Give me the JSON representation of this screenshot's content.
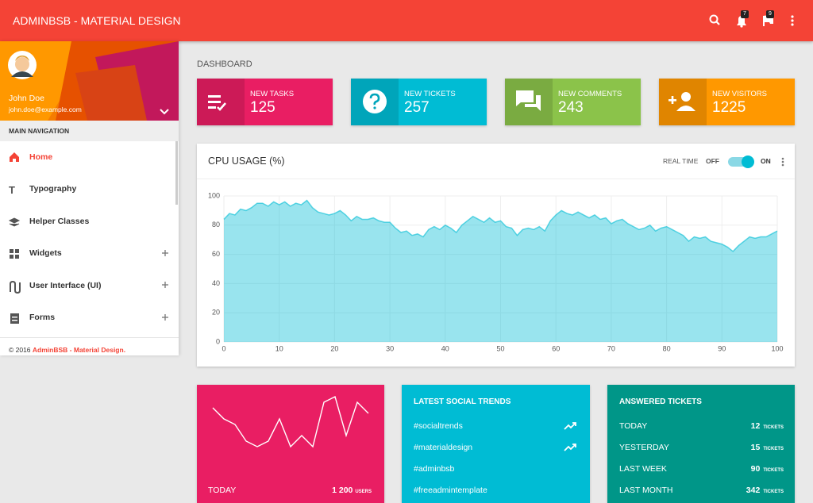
{
  "header": {
    "title": "ADMINBSB - MATERIAL DESIGN",
    "notifications": "7",
    "flags": "9"
  },
  "user": {
    "name": "John Doe",
    "email": "john.doe@example.com"
  },
  "nav": {
    "heading": "MAIN NAVIGATION",
    "items": [
      "Home",
      "Typography",
      "Helper Classes",
      "Widgets",
      "User Interface (UI)",
      "Forms"
    ]
  },
  "footer": {
    "copyright": "© 2016",
    "brand": "AdminBSB - Material Design."
  },
  "page_title": "DASHBOARD",
  "info_boxes": [
    {
      "label": "NEW TASKS",
      "value": 125
    },
    {
      "label": "NEW TICKETS",
      "value": 257
    },
    {
      "label": "NEW COMMENTS",
      "value": 243
    },
    {
      "label": "NEW VISITORS",
      "value": 1225
    }
  ],
  "cpu_card": {
    "realtime": "REAL TIME",
    "off": "OFF",
    "on": "ON"
  },
  "chart_data": [
    {
      "type": "area",
      "title": "CPU USAGE (%)",
      "color": "#00bcd4",
      "x": [
        0,
        1,
        2,
        3,
        4,
        5,
        6,
        7,
        8,
        9,
        10,
        11,
        12,
        13,
        14,
        15,
        16,
        17,
        18,
        19,
        20,
        21,
        22,
        23,
        24,
        25,
        26,
        27,
        28,
        29,
        30,
        31,
        32,
        33,
        34,
        35,
        36,
        37,
        38,
        39,
        40,
        41,
        42,
        43,
        44,
        45,
        46,
        47,
        48,
        49,
        50,
        51,
        52,
        53,
        54,
        55,
        56,
        57,
        58,
        59,
        60,
        61,
        62,
        63,
        64,
        65,
        66,
        67,
        68,
        69,
        70,
        71,
        72,
        73,
        74,
        75,
        76,
        77,
        78,
        79,
        80,
        81,
        82,
        83,
        84,
        85,
        86,
        87,
        88,
        89,
        90,
        91,
        92,
        93,
        94,
        95,
        96,
        97,
        98,
        99,
        100
      ],
      "values": [
        84,
        88,
        87,
        91,
        90,
        92,
        95,
        95,
        93,
        96,
        94,
        96,
        93,
        95,
        94,
        97,
        92,
        89,
        88,
        87,
        88,
        90,
        87,
        83,
        86,
        84,
        84,
        85,
        83,
        82,
        82,
        78,
        75,
        76,
        73,
        74,
        72,
        77,
        79,
        77,
        80,
        78,
        75,
        80,
        83,
        86,
        84,
        82,
        85,
        82,
        83,
        79,
        78,
        73,
        77,
        78,
        77,
        79,
        76,
        83,
        87,
        90,
        88,
        87,
        89,
        87,
        85,
        87,
        84,
        85,
        81,
        83,
        84,
        81,
        79,
        77,
        78,
        80,
        76,
        78,
        79,
        77,
        75,
        73,
        69,
        72,
        71,
        72,
        69,
        68,
        67,
        65,
        62,
        66,
        69,
        72,
        71,
        72,
        72,
        74,
        76
      ],
      "xlim": [
        0,
        100
      ],
      "ylim": [
        0,
        100
      ],
      "xticks": [
        0,
        10,
        20,
        30,
        40,
        50,
        60,
        70,
        80,
        90,
        100
      ],
      "yticks": [
        0,
        20,
        40,
        60,
        80,
        100
      ],
      "grid": true
    },
    {
      "type": "line",
      "color": "#ffffff",
      "values": [
        8,
        6,
        5,
        2,
        1,
        2,
        6,
        1,
        3,
        1,
        9,
        10,
        3,
        9,
        7
      ],
      "ylim": [
        0,
        10
      ]
    }
  ],
  "today_card": {
    "label": "TODAY",
    "value": "1 200",
    "unit": "USERS"
  },
  "social": {
    "title": "LATEST SOCIAL TRENDS",
    "items": [
      "#socialtrends",
      "#materialdesign",
      "#adminbsb",
      "#freeadmintemplate"
    ]
  },
  "tickets": {
    "title": "ANSWERED TICKETS",
    "unit": "TICKETS",
    "rows": [
      {
        "label": "TODAY",
        "value": 12
      },
      {
        "label": "YESTERDAY",
        "value": 15
      },
      {
        "label": "LAST WEEK",
        "value": 90
      },
      {
        "label": "LAST MONTH",
        "value": 342
      }
    ]
  }
}
